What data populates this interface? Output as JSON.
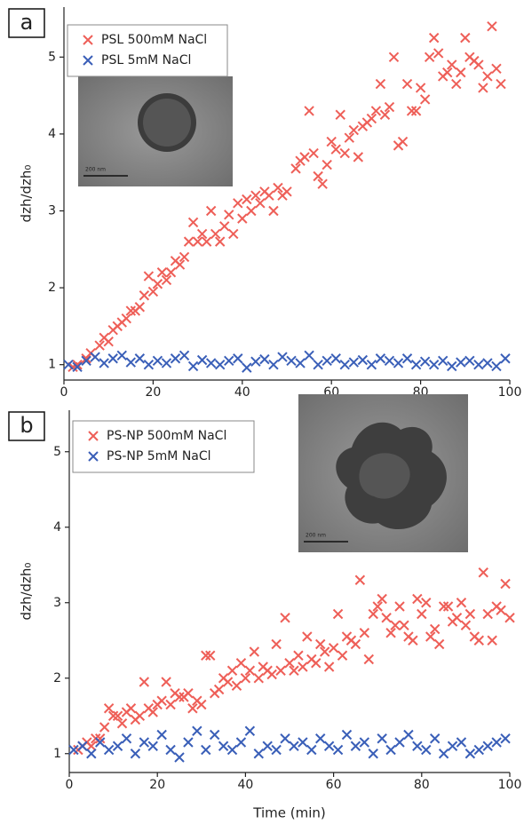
{
  "chart_data": [
    {
      "type": "scatter",
      "panel_label": "a",
      "ylabel": "dzh/dzh₀",
      "legend": "upper left",
      "marker": "x",
      "inset_caption": "200 nm",
      "xlim": [
        0,
        100
      ],
      "xticks": [
        0,
        20,
        40,
        60,
        80,
        100
      ],
      "ylim": [
        0.8,
        5.65
      ],
      "yticks": [
        1,
        2,
        3,
        4,
        5
      ],
      "series": [
        {
          "name": "PSL 500mM NaCl",
          "color": "#ee5f58",
          "x": [
            2,
            3,
            5,
            6,
            8,
            9,
            10,
            11,
            12,
            13,
            14,
            15,
            16,
            17,
            18,
            19,
            20,
            21,
            22,
            23,
            24,
            25,
            26,
            27,
            28,
            29,
            30,
            31,
            32,
            33,
            34,
            35,
            36,
            37,
            38,
            39,
            40,
            41,
            42,
            43,
            44,
            45,
            46,
            47,
            48,
            49,
            50,
            52,
            53,
            54,
            55,
            56,
            57,
            58,
            59,
            60,
            61,
            62,
            63,
            64,
            65,
            66,
            67,
            68,
            69,
            70,
            71,
            72,
            73,
            74,
            75,
            76,
            77,
            78,
            79,
            80,
            81,
            82,
            83,
            84,
            85,
            86,
            87,
            88,
            89,
            90,
            91,
            92,
            93,
            94,
            95,
            96,
            97,
            98
          ],
          "values": [
            0.97,
            1.0,
            1.08,
            1.15,
            1.25,
            1.35,
            1.3,
            1.45,
            1.5,
            1.55,
            1.6,
            1.7,
            1.7,
            1.75,
            1.9,
            2.15,
            1.95,
            2.05,
            2.2,
            2.1,
            2.2,
            2.35,
            2.3,
            2.4,
            2.6,
            2.85,
            2.6,
            2.7,
            2.6,
            3.0,
            2.7,
            2.6,
            2.8,
            2.95,
            2.7,
            3.1,
            2.9,
            3.15,
            3.0,
            3.2,
            3.1,
            3.25,
            3.2,
            3.0,
            3.3,
            3.2,
            3.25,
            3.55,
            3.65,
            3.7,
            4.3,
            3.75,
            3.45,
            3.35,
            3.6,
            3.9,
            3.8,
            4.25,
            3.75,
            3.95,
            4.05,
            3.7,
            4.1,
            4.15,
            4.2,
            4.3,
            4.65,
            4.25,
            4.35,
            5.0,
            3.85,
            3.9,
            4.65,
            4.3,
            4.3,
            4.6,
            4.45,
            5.0,
            5.25,
            5.05,
            4.75,
            4.8,
            4.9,
            4.65,
            4.8,
            5.25,
            5.0,
            4.95,
            4.9,
            4.6,
            4.75,
            5.4,
            4.85,
            4.65
          ]
        },
        {
          "name": "PSL 5mM NaCl",
          "color": "#3a5fb8",
          "x": [
            1,
            3,
            5,
            7,
            9,
            11,
            13,
            15,
            17,
            19,
            21,
            23,
            25,
            27,
            29,
            31,
            33,
            35,
            37,
            39,
            41,
            43,
            45,
            47,
            49,
            51,
            53,
            55,
            57,
            59,
            61,
            63,
            65,
            67,
            69,
            71,
            73,
            75,
            77,
            79,
            81,
            83,
            85,
            87,
            89,
            91,
            93,
            95,
            97,
            99
          ],
          "values": [
            1.0,
            0.97,
            1.05,
            1.1,
            1.02,
            1.08,
            1.12,
            1.03,
            1.08,
            1.0,
            1.05,
            1.02,
            1.08,
            1.12,
            0.98,
            1.06,
            1.02,
            1.0,
            1.05,
            1.08,
            0.96,
            1.04,
            1.07,
            1.0,
            1.1,
            1.05,
            1.02,
            1.12,
            1.0,
            1.05,
            1.08,
            1.0,
            1.03,
            1.06,
            1.0,
            1.08,
            1.05,
            1.02,
            1.08,
            1.0,
            1.04,
            1.0,
            1.05,
            0.98,
            1.03,
            1.05,
            1.0,
            1.02,
            0.98,
            1.08
          ]
        }
      ]
    },
    {
      "type": "scatter",
      "panel_label": "b",
      "ylabel": "dzh/dzh₀",
      "xlabel": "Time (min)",
      "legend": "upper left",
      "marker": "x",
      "inset_caption": "200 nm",
      "xlim": [
        0,
        100
      ],
      "xticks": [
        0,
        20,
        40,
        60,
        80,
        100
      ],
      "ylim": [
        0.75,
        5.55
      ],
      "yticks": [
        1,
        2,
        3,
        4,
        5
      ],
      "series": [
        {
          "name": "PS-NP 500mM NaCl",
          "color": "#ee5f58",
          "x": [
            2,
            3,
            4,
            5,
            6,
            7,
            8,
            9,
            10,
            11,
            12,
            13,
            14,
            15,
            16,
            17,
            18,
            19,
            20,
            21,
            22,
            23,
            24,
            25,
            26,
            27,
            28,
            29,
            30,
            31,
            32,
            33,
            34,
            35,
            36,
            37,
            38,
            39,
            40,
            41,
            42,
            43,
            44,
            45,
            46,
            47,
            48,
            49,
            50,
            51,
            52,
            53,
            54,
            55,
            56,
            57,
            58,
            59,
            60,
            61,
            62,
            63,
            64,
            65,
            66,
            67,
            68,
            69,
            70,
            71,
            72,
            73,
            74,
            75,
            76,
            77,
            78,
            79,
            80,
            81,
            82,
            83,
            84,
            85,
            86,
            87,
            88,
            89,
            90,
            91,
            92,
            93,
            94,
            95,
            96,
            97,
            98,
            99,
            100
          ],
          "values": [
            1.05,
            1.1,
            1.15,
            1.1,
            1.2,
            1.2,
            1.35,
            1.6,
            1.5,
            1.5,
            1.4,
            1.55,
            1.6,
            1.45,
            1.5,
            1.95,
            1.6,
            1.55,
            1.65,
            1.7,
            1.95,
            1.65,
            1.8,
            1.75,
            1.75,
            1.8,
            1.6,
            1.7,
            1.65,
            2.3,
            2.3,
            1.8,
            1.85,
            2.0,
            1.95,
            2.1,
            1.9,
            2.2,
            2.0,
            2.1,
            2.35,
            2.0,
            2.15,
            2.1,
            2.05,
            2.45,
            2.1,
            2.8,
            2.2,
            2.1,
            2.3,
            2.15,
            2.55,
            2.25,
            2.2,
            2.45,
            2.35,
            2.15,
            2.4,
            2.85,
            2.3,
            2.55,
            2.5,
            2.45,
            3.3,
            2.6,
            2.25,
            2.85,
            2.95,
            3.05,
            2.8,
            2.6,
            2.7,
            2.95,
            2.7,
            2.55,
            2.5,
            3.05,
            2.85,
            3.0,
            2.55,
            2.65,
            2.45,
            2.95,
            2.95,
            2.75,
            2.8,
            3.0,
            2.7,
            2.85,
            2.55,
            2.5,
            3.4,
            2.85,
            2.5,
            2.95,
            2.9,
            3.25,
            2.8
          ]
        },
        {
          "name": "PS-NP 5mM NaCl",
          "color": "#3a5fb8",
          "x": [
            1,
            3,
            5,
            7,
            9,
            11,
            13,
            15,
            17,
            19,
            21,
            23,
            25,
            27,
            29,
            31,
            33,
            35,
            37,
            39,
            41,
            43,
            45,
            47,
            49,
            51,
            53,
            55,
            57,
            59,
            61,
            63,
            65,
            67,
            69,
            71,
            73,
            75,
            77,
            79,
            81,
            83,
            85,
            87,
            89,
            91,
            93,
            95,
            97,
            99
          ],
          "values": [
            1.05,
            1.1,
            1.0,
            1.15,
            1.05,
            1.1,
            1.2,
            1.0,
            1.15,
            1.1,
            1.25,
            1.05,
            0.95,
            1.15,
            1.3,
            1.05,
            1.25,
            1.1,
            1.05,
            1.15,
            1.3,
            1.0,
            1.1,
            1.05,
            1.2,
            1.1,
            1.15,
            1.05,
            1.2,
            1.1,
            1.05,
            1.25,
            1.1,
            1.15,
            1.0,
            1.2,
            1.05,
            1.15,
            1.25,
            1.1,
            1.05,
            1.2,
            1.0,
            1.1,
            1.15,
            1.0,
            1.05,
            1.1,
            1.15,
            1.2
          ]
        }
      ]
    }
  ]
}
